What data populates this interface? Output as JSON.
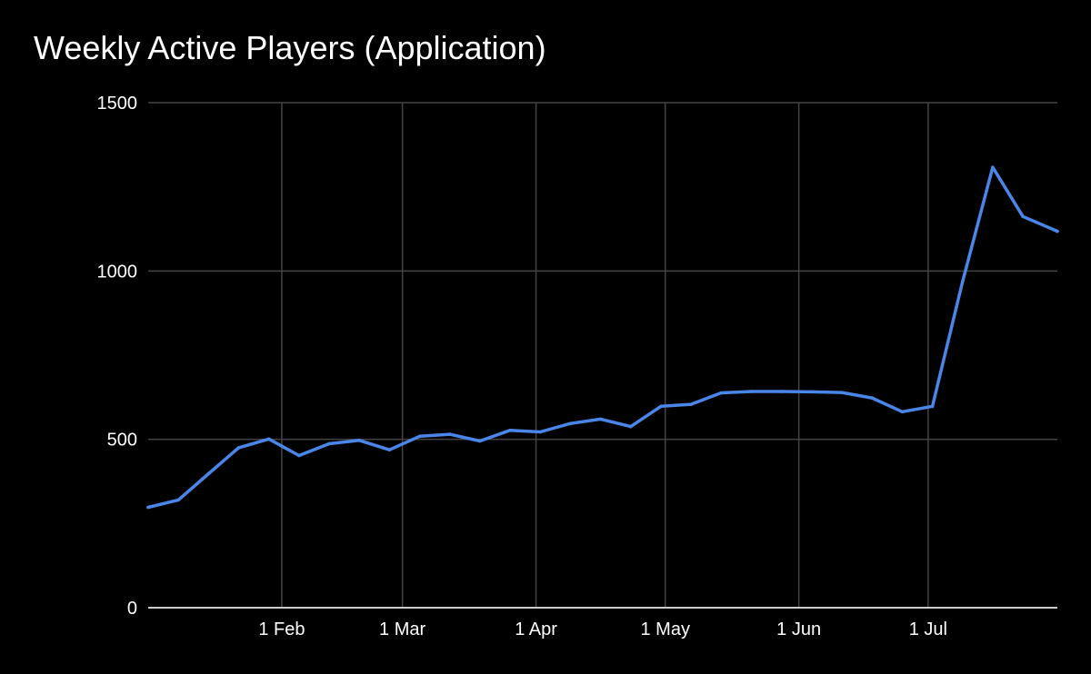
{
  "chart_data": {
    "type": "line",
    "title": "Weekly Active Players (Application)",
    "xlabel": "",
    "ylabel": "",
    "x_axis_type": "date",
    "xlim": [
      "2021-01-01",
      "2021-07-31"
    ],
    "ylim": [
      0,
      1500
    ],
    "x_ticks": [
      {
        "date": "2021-02-01",
        "label": "1 Feb"
      },
      {
        "date": "2021-03-01",
        "label": "1 Mar"
      },
      {
        "date": "2021-04-01",
        "label": "1 Apr"
      },
      {
        "date": "2021-05-01",
        "label": "1 May"
      },
      {
        "date": "2021-06-01",
        "label": "1 Jun"
      },
      {
        "date": "2021-07-01",
        "label": "1 Jul"
      }
    ],
    "y_ticks": [
      {
        "value": 0,
        "label": "0"
      },
      {
        "value": 500,
        "label": "500"
      },
      {
        "value": 1000,
        "label": "1000"
      },
      {
        "value": 1500,
        "label": "1500"
      }
    ],
    "grid": true,
    "legend": "none",
    "colors": {
      "background": "#000000",
      "line": "#4a86e8",
      "grid": "#444444",
      "axis": "#cccccc",
      "text": "#ffffff"
    },
    "series": [
      {
        "x": [
          "2021-01-01",
          "2021-01-08",
          "2021-01-15",
          "2021-01-22",
          "2021-01-29",
          "2021-02-05",
          "2021-02-12",
          "2021-02-19",
          "2021-02-26",
          "2021-03-05",
          "2021-03-12",
          "2021-03-19",
          "2021-03-26",
          "2021-04-02",
          "2021-04-09",
          "2021-04-16",
          "2021-04-23",
          "2021-04-30",
          "2021-05-07",
          "2021-05-14",
          "2021-05-21",
          "2021-05-28",
          "2021-06-04",
          "2021-06-11",
          "2021-06-18",
          "2021-06-25",
          "2021-07-02",
          "2021-07-09",
          "2021-07-16",
          "2021-07-23",
          "2021-07-31"
        ],
        "values": [
          298,
          320,
          398,
          475,
          501,
          452,
          487,
          497,
          469,
          509,
          515,
          495,
          527,
          522,
          547,
          560,
          538,
          598,
          604,
          638,
          642,
          642,
          641,
          639,
          623,
          582,
          598,
          968,
          1308,
          1162,
          1118
        ]
      }
    ]
  }
}
